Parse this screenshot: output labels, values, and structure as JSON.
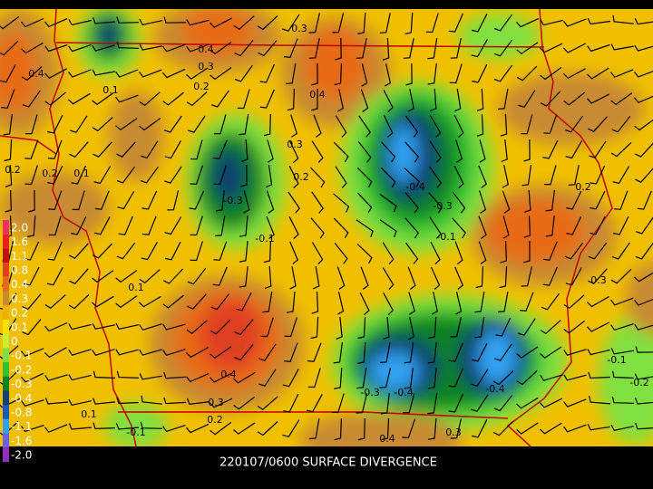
{
  "caption": "220107/0600 SURFACE DIVERGENCE",
  "legend": {
    "labels": [
      "2.0",
      "1.6",
      "1.1",
      "0.8",
      "0.4",
      "0.3",
      "0.2",
      "0.1",
      "0",
      "-0.1",
      "-0.2",
      "-0.3",
      "-0.4",
      "-0.8",
      "-1.1",
      "-1.6",
      "-2.0"
    ]
  },
  "contour_labels": [
    "0.4",
    "0.3",
    "0.2",
    "0.1",
    "0.4",
    "0.3",
    "0.2",
    "-0.3",
    "-0.1",
    "-0.4",
    "-0.3",
    "-0.1",
    "0.2",
    "0.4",
    "0.3",
    "0.2",
    "0.1",
    "0.4",
    "0.3",
    "0.2",
    "-0.3",
    "-0.4",
    "-0.4",
    "0.1",
    "-0.1",
    "0.4",
    "0.3",
    "-0.2",
    "-0.1",
    "0.1",
    "0.2",
    "0.3"
  ]
}
